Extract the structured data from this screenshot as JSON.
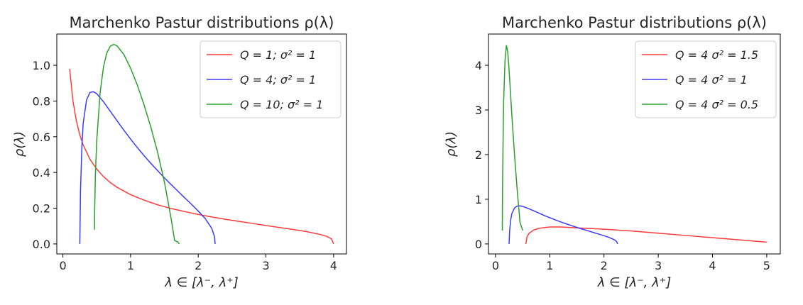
{
  "chart_data": [
    {
      "type": "line",
      "title": "Marchenko Pastur distributions ρ(λ)",
      "xlabel": "λ ∈ [λ⁻, λ⁺]",
      "ylabel": "ρ(λ)",
      "xlim": [
        -0.09,
        4.19
      ],
      "ylim": [
        -0.056,
        1.175
      ],
      "xticks": [
        0,
        1,
        2,
        3,
        4
      ],
      "yticks": [
        0.0,
        0.2,
        0.4,
        0.6,
        0.8,
        1.0
      ],
      "ytick_labels": [
        "0.0",
        "0.2",
        "0.4",
        "0.6",
        "0.8",
        "1.0"
      ],
      "grid": false,
      "legend_position": "top-right",
      "series": [
        {
          "name": "Q = 1; σ² = 1",
          "color": "#ff3b3b",
          "x": [
            0.1,
            0.15,
            0.2,
            0.25,
            0.3,
            0.4,
            0.5,
            0.6,
            0.7,
            0.8,
            1.0,
            1.2,
            1.4,
            1.6,
            1.8,
            2.0,
            2.2,
            2.4,
            2.6,
            2.8,
            3.0,
            3.2,
            3.4,
            3.6,
            3.8,
            3.9,
            3.97,
            4.0
          ],
          "y": [
            0.98,
            0.797,
            0.687,
            0.611,
            0.554,
            0.474,
            0.419,
            0.377,
            0.344,
            0.317,
            0.276,
            0.245,
            0.219,
            0.198,
            0.181,
            0.165,
            0.151,
            0.138,
            0.126,
            0.115,
            0.103,
            0.092,
            0.081,
            0.069,
            0.053,
            0.042,
            0.028,
            0.0
          ]
        },
        {
          "name": "Q = 4; σ² = 1",
          "color": "#3b3bff",
          "x": [
            0.25,
            0.26,
            0.28,
            0.3,
            0.35,
            0.4,
            0.45,
            0.5,
            0.6,
            0.7,
            0.8,
            0.9,
            1.0,
            1.1,
            1.2,
            1.3,
            1.4,
            1.5,
            1.6,
            1.7,
            1.8,
            1.9,
            2.0,
            2.1,
            2.2,
            2.24,
            2.25
          ],
          "y": [
            0.0,
            0.293,
            0.539,
            0.676,
            0.807,
            0.848,
            0.852,
            0.841,
            0.796,
            0.743,
            0.69,
            0.637,
            0.587,
            0.539,
            0.494,
            0.451,
            0.41,
            0.37,
            0.332,
            0.295,
            0.258,
            0.222,
            0.184,
            0.143,
            0.087,
            0.04,
            0.0
          ]
        },
        {
          "name": "Q = 10; σ² = 1",
          "color": "#2ca02c",
          "x": [
            0.467,
            0.47,
            0.48,
            0.5,
            0.55,
            0.6,
            0.65,
            0.7,
            0.75,
            0.8,
            0.9,
            1.0,
            1.1,
            1.2,
            1.3,
            1.4,
            1.5,
            1.6,
            1.65,
            1.7,
            1.72
          ],
          "y": [
            0.08,
            0.197,
            0.385,
            0.576,
            0.847,
            0.992,
            1.07,
            1.107,
            1.117,
            1.109,
            1.061,
            0.984,
            0.889,
            0.778,
            0.653,
            0.512,
            0.347,
            0.14,
            0.02,
            0.01,
            0.0
          ]
        }
      ]
    },
    {
      "type": "line",
      "title": "Marchenko Pastur distributions ρ(λ)",
      "xlabel": "λ ∈ [λ⁻, λ⁺]",
      "ylabel": "ρ(λ)",
      "xlim": [
        -0.13,
        5.25
      ],
      "ylim": [
        -0.224,
        4.7
      ],
      "xticks": [
        0,
        1,
        2,
        3,
        4,
        5
      ],
      "yticks": [
        0,
        1,
        2,
        3,
        4
      ],
      "ytick_labels": [
        "0",
        "1",
        "2",
        "3",
        "4"
      ],
      "grid": false,
      "legend_position": "top-right",
      "series": [
        {
          "name": "Q = 4 σ² = 1.5",
          "color": "#ff3b3b",
          "x": [
            0.56,
            0.58,
            0.62,
            0.7,
            0.8,
            1.0,
            1.2,
            1.5,
            2.0,
            2.5,
            3.0,
            3.5,
            4.0,
            4.5,
            5.0
          ],
          "y": [
            0.0,
            0.16,
            0.24,
            0.31,
            0.35,
            0.38,
            0.38,
            0.36,
            0.33,
            0.29,
            0.24,
            0.19,
            0.14,
            0.09,
            0.04
          ]
        },
        {
          "name": "Q = 4 σ² = 1",
          "color": "#3b3bff",
          "x": [
            0.25,
            0.26,
            0.28,
            0.3,
            0.35,
            0.4,
            0.45,
            0.5,
            0.6,
            0.7,
            0.8,
            0.9,
            1.0,
            1.1,
            1.2,
            1.3,
            1.4,
            1.5,
            1.6,
            1.7,
            1.8,
            1.9,
            2.0,
            2.1,
            2.2,
            2.24,
            2.25
          ],
          "y": [
            0.0,
            0.293,
            0.539,
            0.676,
            0.807,
            0.848,
            0.852,
            0.841,
            0.796,
            0.743,
            0.69,
            0.637,
            0.587,
            0.539,
            0.494,
            0.451,
            0.41,
            0.37,
            0.332,
            0.295,
            0.258,
            0.222,
            0.184,
            0.143,
            0.087,
            0.04,
            0.0
          ]
        },
        {
          "name": "Q = 4 σ² = 0.5",
          "color": "#2ca02c",
          "x": [
            0.125,
            0.13,
            0.14,
            0.15,
            0.175,
            0.2,
            0.225,
            0.25,
            0.3,
            0.35,
            0.4,
            0.45,
            0.5
          ],
          "y": [
            0.3,
            1.3,
            2.4,
            3.2,
            4.1,
            4.45,
            4.3,
            3.9,
            2.9,
            2.0,
            1.2,
            0.5,
            0.3
          ]
        }
      ]
    }
  ]
}
